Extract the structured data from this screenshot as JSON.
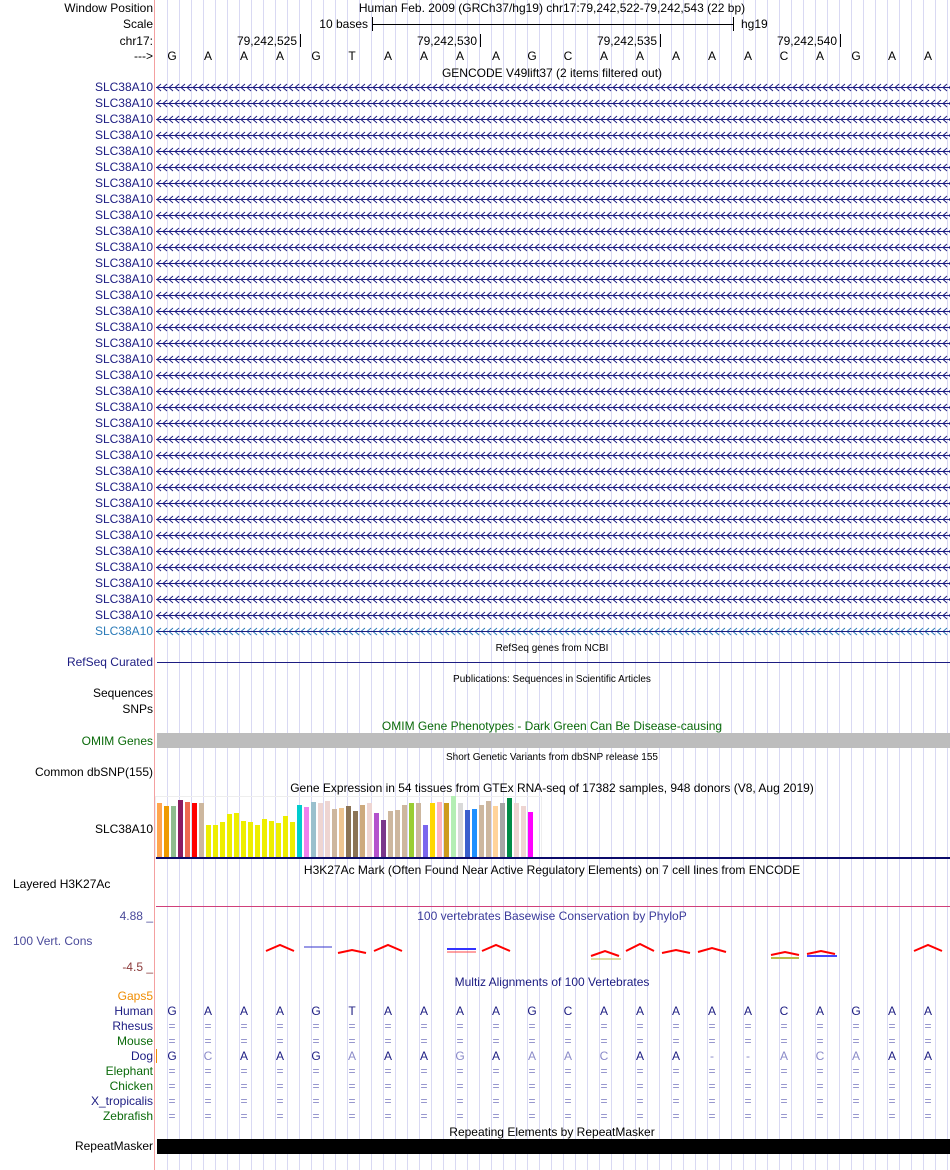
{
  "header": {
    "window_position_label": "Window Position",
    "window_position_value": "Human Feb. 2009 (GRCh37/hg19)   chr17:79,242,522-79,242,543 (22 bp)",
    "scale_label": "Scale",
    "scale_text": "10 bases",
    "scale_assembly": "hg19",
    "chrom_label": "chr17:",
    "ticks": [
      "79,242,525",
      "79,242,530",
      "79,242,535",
      "79,242,540"
    ],
    "strand_label": "--->",
    "bases": [
      "G",
      "A",
      "A",
      "A",
      "G",
      "T",
      "A",
      "A",
      "A",
      "A",
      "G",
      "C",
      "A",
      "A",
      "A",
      "A",
      "A",
      "C",
      "A",
      "G",
      "A",
      "A"
    ]
  },
  "gencode": {
    "title": "GENCODE V49lift37 (2 items filtered out)",
    "genes": [
      "SLC38A10",
      "SLC38A10",
      "SLC38A10",
      "SLC38A10",
      "SLC38A10",
      "SLC38A10",
      "SLC38A10",
      "SLC38A10",
      "SLC38A10",
      "SLC38A10",
      "SLC38A10",
      "SLC38A10",
      "SLC38A10",
      "SLC38A10",
      "SLC38A10",
      "SLC38A10",
      "SLC38A10",
      "SLC38A10",
      "SLC38A10",
      "SLC38A10",
      "SLC38A10",
      "SLC38A10",
      "SLC38A10",
      "SLC38A10",
      "SLC38A10",
      "SLC38A10",
      "SLC38A10",
      "SLC38A10",
      "SLC38A10",
      "SLC38A10",
      "SLC38A10",
      "SLC38A10",
      "SLC38A10",
      "SLC38A10",
      "SLC38A10"
    ]
  },
  "refseq": {
    "title": "RefSeq genes from NCBI",
    "label": "RefSeq Curated"
  },
  "publications": {
    "title": "Publications: Sequences in Scientific Articles",
    "label_sequences": "Sequences",
    "label_snps": "SNPs"
  },
  "omim": {
    "title": "OMIM Gene Phenotypes - Dark Green Can Be Disease-causing",
    "label": "OMIM Genes"
  },
  "dbsnp": {
    "title": "Short Genetic Variants from dbSNP release 155",
    "label": "Common dbSNP(155)"
  },
  "gtex": {
    "title": "Gene Expression in 54 tissues from GTEx RNA-seq of 17382 samples, 948 donors (V8, Aug 2019)",
    "label": "SLC38A10"
  },
  "chart_data": {
    "type": "bar",
    "title": "Gene Expression in 54 tissues from GTEx RNA-seq of 17382 samples, 948 donors (V8, Aug 2019)",
    "note": "relative expression (unlabeled axis)",
    "values": [
      161,
      153,
      153,
      170,
      164,
      161,
      161,
      96,
      96,
      104,
      129,
      131,
      107,
      105,
      96,
      113,
      107,
      102,
      123,
      104,
      156,
      149,
      164,
      161,
      167,
      143,
      146,
      152,
      137,
      155,
      161,
      131,
      110,
      137,
      140,
      155,
      161,
      161,
      95,
      161,
      164,
      161,
      182,
      161,
      140,
      143,
      155,
      167,
      152,
      161,
      176,
      161,
      152,
      134
    ],
    "colors": [
      "#FFA54F",
      "#EE9A00",
      "#8FBC8F",
      "#8B1C62",
      "#EE6A50",
      "#FF0000",
      "#CDB79E",
      "#EEEE00",
      "#EEEE00",
      "#EEEE00",
      "#EEEE00",
      "#EEEE00",
      "#EEEE00",
      "#EEEE00",
      "#EEEE00",
      "#EEEE00",
      "#EEEE00",
      "#EEEE00",
      "#EEEE00",
      "#EEEE00",
      "#00CDCD",
      "#EE82EE",
      "#9AC0CD",
      "#EED5D2",
      "#EED5D2",
      "#CDB79E",
      "#EEC591",
      "#8B7355",
      "#8B7355",
      "#CDAA7D",
      "#EED5D2",
      "#B452CD",
      "#7A378B",
      "#CDB79E",
      "#CDB79E",
      "#CDB79E",
      "#9ACD32",
      "#CDB79E",
      "#7A67EE",
      "#FFD700",
      "#FFB6C1",
      "#CD9B1D",
      "#B4EEB4",
      "#D9D9D9",
      "#3A5FCD",
      "#1E90FF",
      "#CDB79E",
      "#CDB79E",
      "#FFD39B",
      "#A6A6A6",
      "#008B45",
      "#EED5D2",
      "#EED5D2",
      "#FF00FF"
    ],
    "ylim": [
      0,
      190
    ]
  },
  "h3k27ac": {
    "title": "H3K27Ac Mark (Often Found Near Active Regulatory Elements) on 7 cell lines from ENCODE",
    "label": "Layered H3K27Ac"
  },
  "phylop": {
    "title": "100 vertebrates Basewise Conservation by PhyloP",
    "label": "100 Vert. Cons",
    "max": "4.88 _",
    "min": "-4.5 _"
  },
  "multiz": {
    "title": "Multiz Alignments of 100 Vertebrates",
    "gaps_label": "Gaps5",
    "species": [
      {
        "name": "Human",
        "color": "#1c1c82",
        "bases": [
          "G",
          "A",
          "A",
          "A",
          "G",
          "T",
          "A",
          "A",
          "A",
          "A",
          "G",
          "C",
          "A",
          "A",
          "A",
          "A",
          "A",
          "C",
          "A",
          "G",
          "A",
          "A"
        ]
      },
      {
        "name": "Rhesus",
        "color": "#1c1c82",
        "bases": [
          "=",
          "=",
          "=",
          "=",
          "=",
          "=",
          "=",
          "=",
          "=",
          "=",
          "=",
          "=",
          "=",
          "=",
          "=",
          "=",
          "=",
          "=",
          "=",
          "=",
          "=",
          "="
        ]
      },
      {
        "name": "Mouse",
        "color": "#0a6a0a",
        "bases": [
          "=",
          "=",
          "=",
          "=",
          "=",
          "=",
          "=",
          "=",
          "=",
          "=",
          "=",
          "=",
          "=",
          "=",
          "=",
          "=",
          "=",
          "=",
          "=",
          "=",
          "=",
          "="
        ]
      },
      {
        "name": "Dog",
        "color": "#1c1c82",
        "bases": [
          "G",
          "C",
          "A",
          "A",
          "G",
          "A",
          "A",
          "A",
          "G",
          "A",
          "A",
          "A",
          "C",
          "A",
          "A",
          "-",
          "-",
          "A",
          "C",
          "A",
          "A",
          "A"
        ],
        "mismatch": [
          false,
          true,
          false,
          false,
          false,
          true,
          false,
          false,
          true,
          false,
          true,
          true,
          true,
          false,
          false,
          true,
          true,
          true,
          true,
          true,
          false,
          false
        ]
      },
      {
        "name": "Elephant",
        "color": "#0a6a0a",
        "bases": [
          "=",
          "=",
          "=",
          "=",
          "=",
          "=",
          "=",
          "=",
          "=",
          "=",
          "=",
          "=",
          "=",
          "=",
          "=",
          "=",
          "=",
          "=",
          "=",
          "=",
          "=",
          "="
        ]
      },
      {
        "name": "Chicken",
        "color": "#0a6a0a",
        "bases": [
          "=",
          "=",
          "=",
          "=",
          "=",
          "=",
          "=",
          "=",
          "=",
          "=",
          "=",
          "=",
          "=",
          "=",
          "=",
          "=",
          "=",
          "=",
          "=",
          "=",
          "=",
          "="
        ]
      },
      {
        "name": "X_tropicalis",
        "color": "#1c1c82",
        "bases": [
          "=",
          "=",
          "=",
          "=",
          "=",
          "=",
          "=",
          "=",
          "=",
          "=",
          "=",
          "=",
          "=",
          "=",
          "=",
          "=",
          "=",
          "=",
          "=",
          "=",
          "=",
          "="
        ]
      },
      {
        "name": "Zebrafish",
        "color": "#0a6a0a",
        "bases": [
          "=",
          "=",
          "=",
          "=",
          "=",
          "=",
          "=",
          "=",
          "=",
          "=",
          "=",
          "=",
          "=",
          "=",
          "=",
          "=",
          "=",
          "=",
          "=",
          "=",
          "=",
          "="
        ]
      }
    ]
  },
  "repeatmasker": {
    "title": "Repeating Elements by RepeatMasker",
    "label": "RepeatMasker"
  }
}
